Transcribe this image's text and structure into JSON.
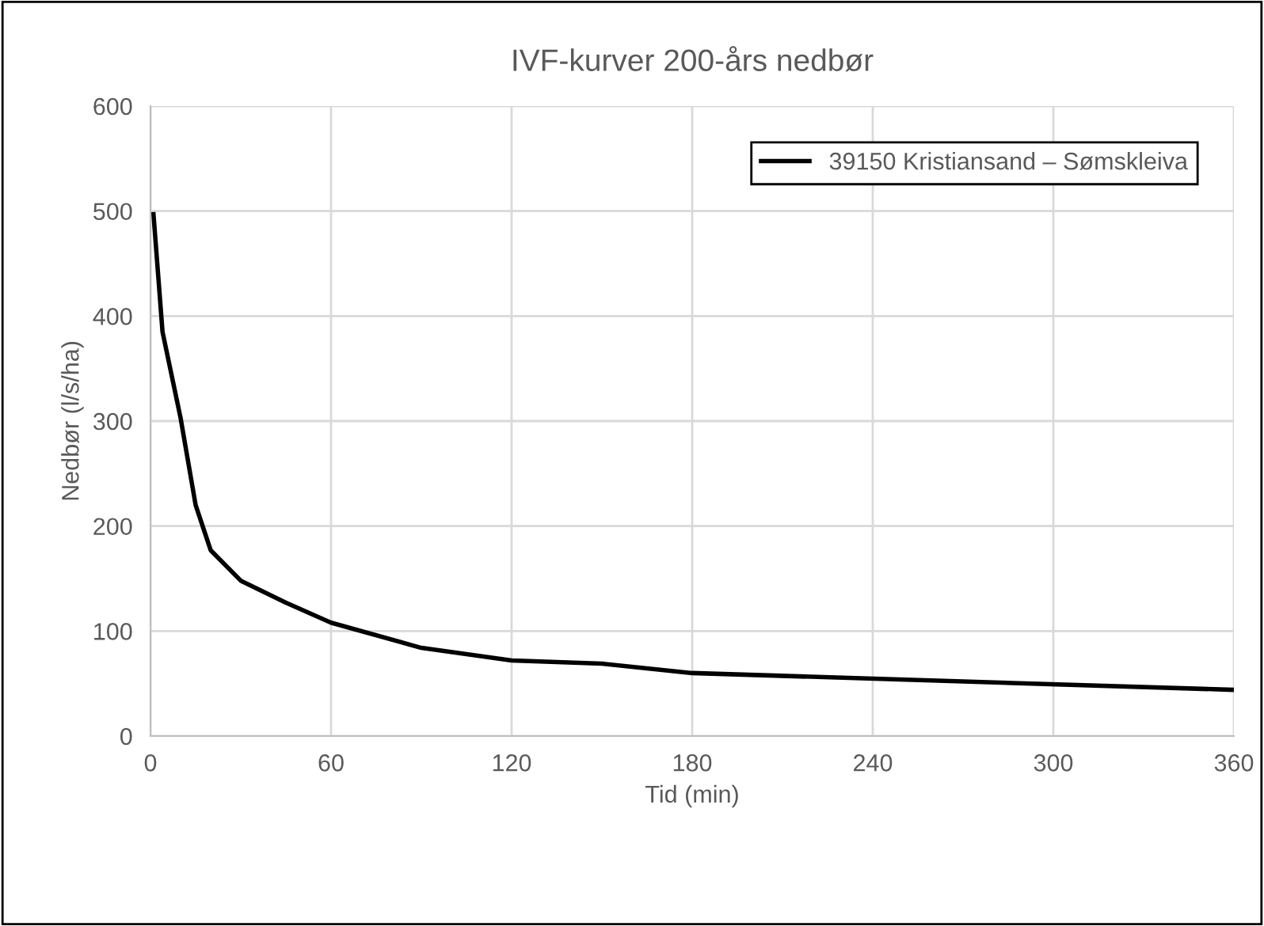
{
  "chart_data": {
    "type": "line",
    "title": "IVF-kurver 200-års nedbør",
    "xlabel": "Tid (min)",
    "ylabel": "Nedbør (l/s/ha)",
    "series": [
      {
        "name": "39150 Kristiansand – Sømskleiva",
        "color": "#000000",
        "x": [
          1,
          4,
          10,
          15,
          20,
          30,
          45,
          60,
          90,
          120,
          150,
          180,
          360
        ],
        "values": [
          497,
          385,
          303,
          220,
          177,
          148,
          127,
          108,
          84,
          72,
          69,
          60,
          44
        ]
      }
    ],
    "xlim": [
      0,
      360
    ],
    "xticks": [
      0,
      60,
      120,
      180,
      240,
      300,
      360
    ],
    "ylim": [
      0,
      600
    ],
    "yticks": [
      0,
      100,
      200,
      300,
      400,
      500,
      600
    ],
    "grid": true,
    "legend": "top right",
    "marker": "none",
    "line_style": "solid"
  }
}
